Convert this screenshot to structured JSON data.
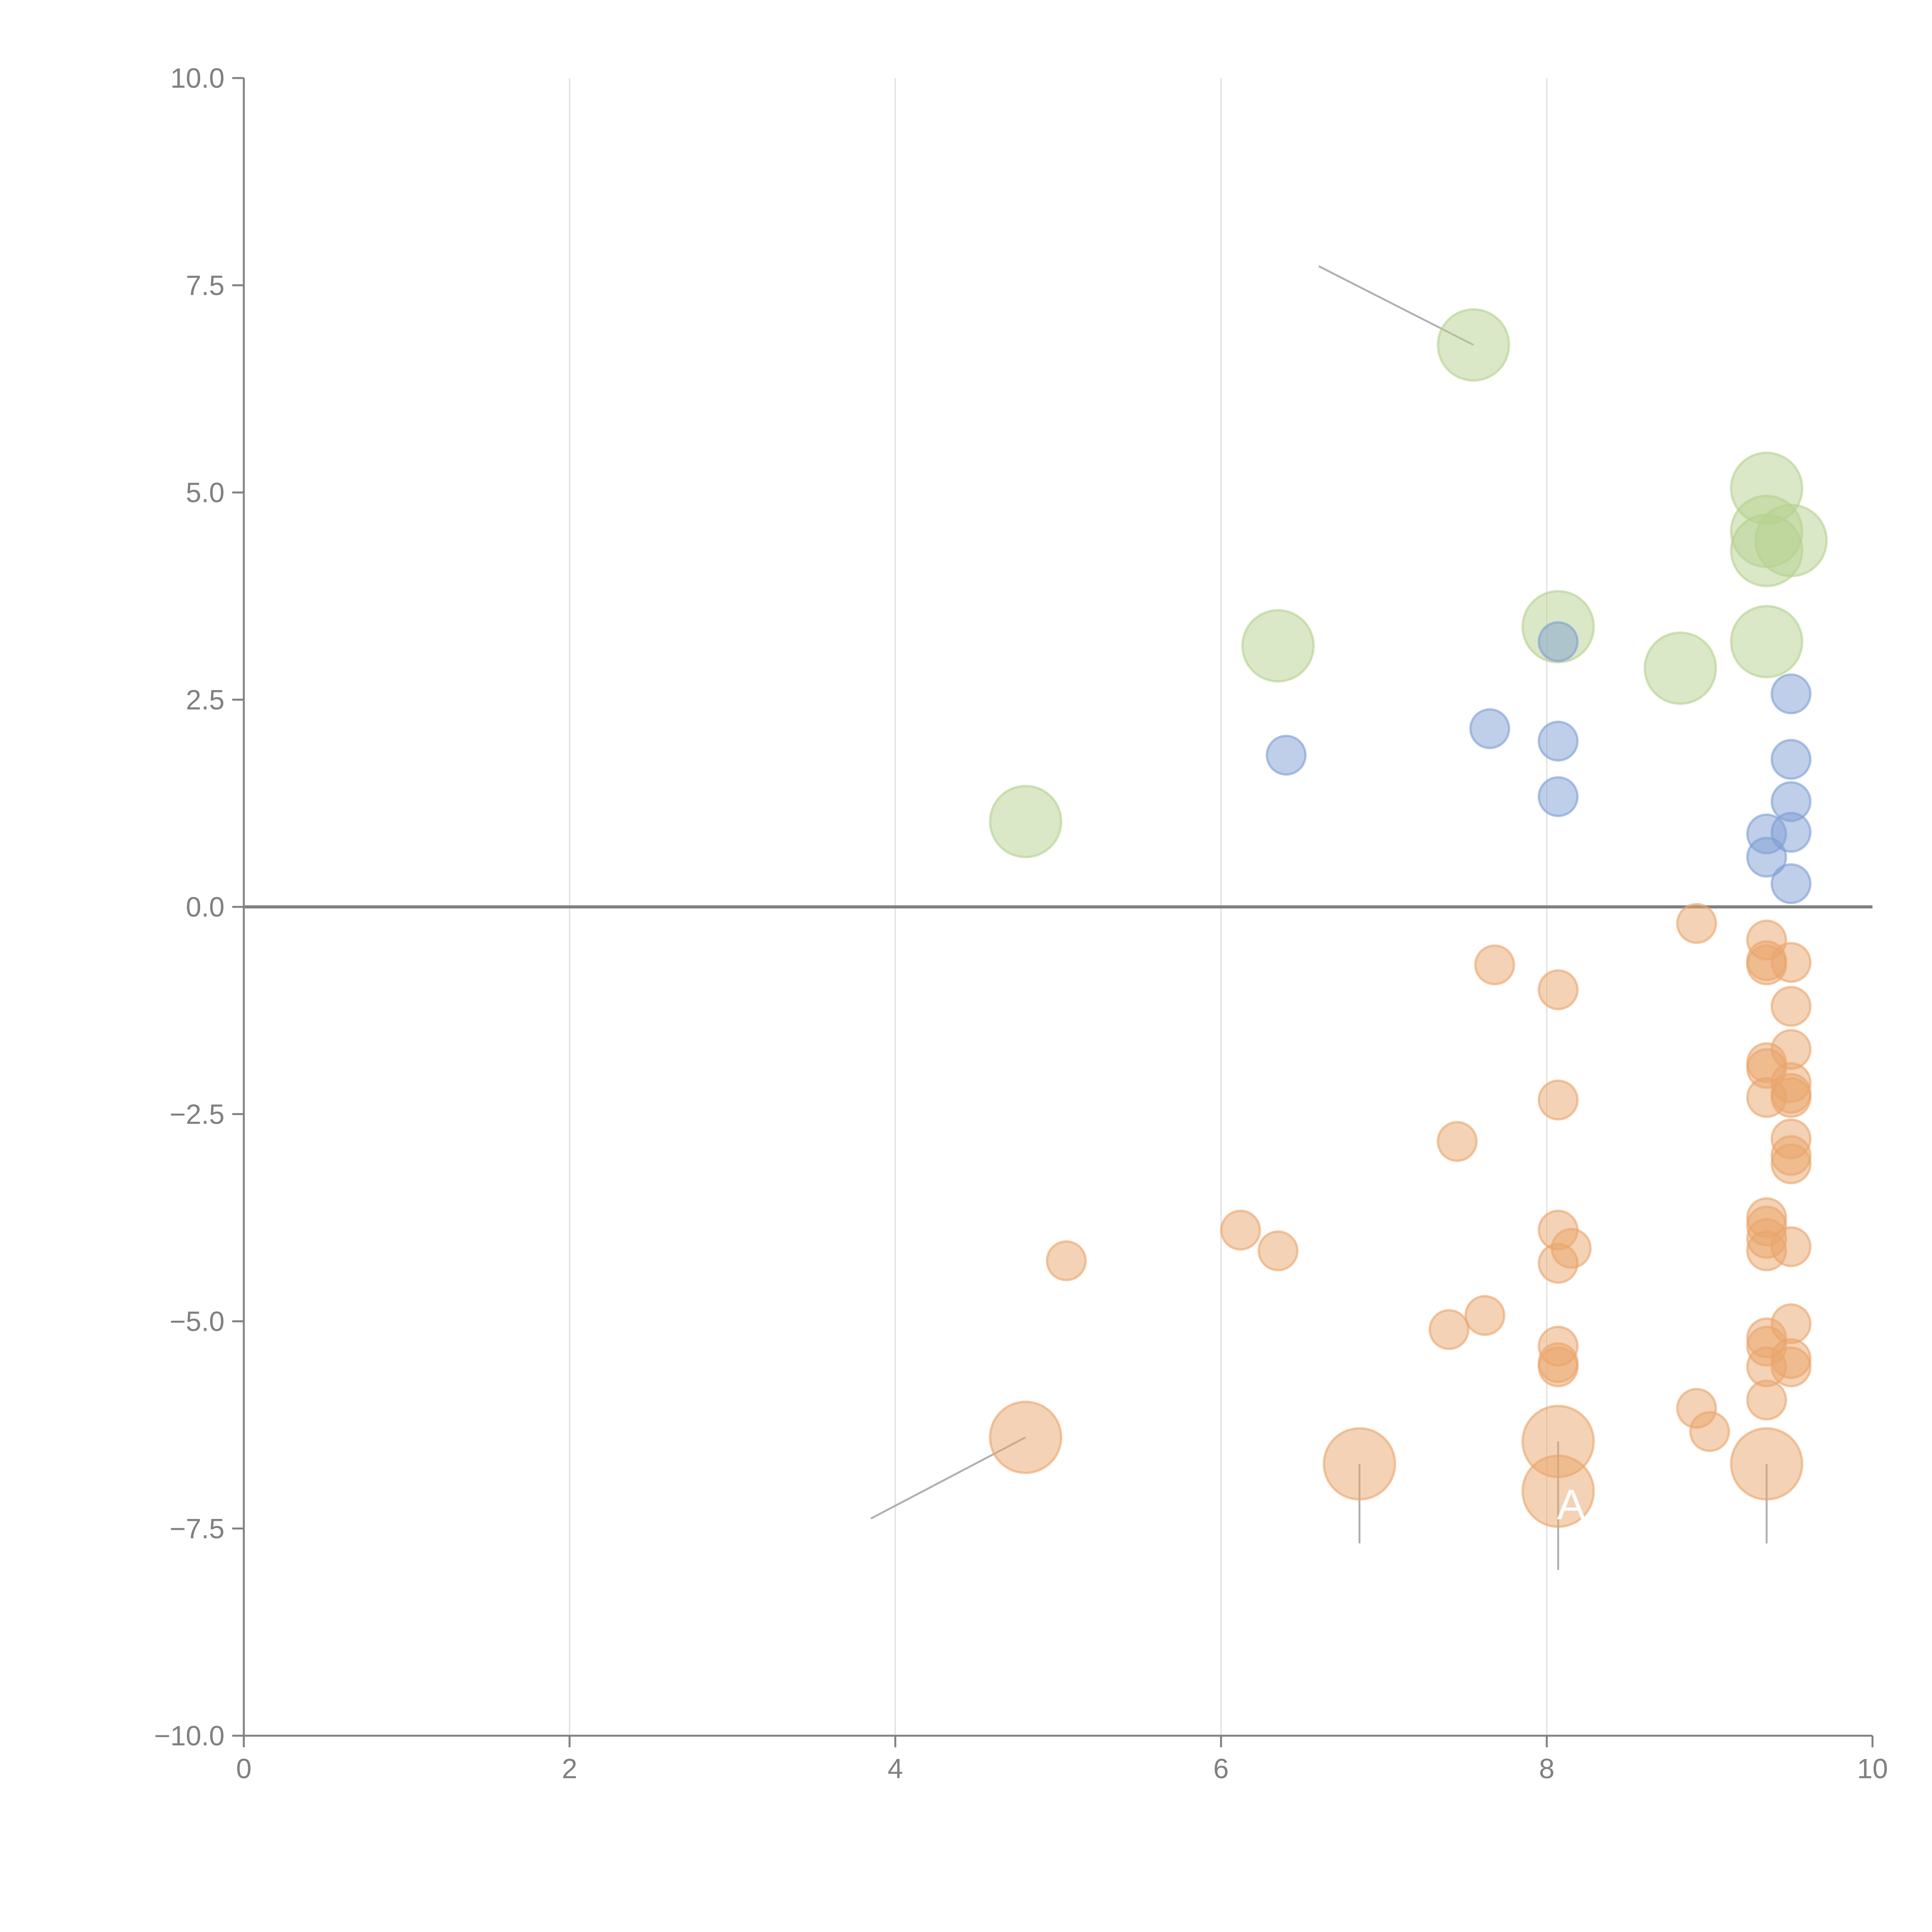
{
  "chart_data": {
    "type": "scatter",
    "title": "",
    "xlabel": "",
    "ylabel": "",
    "xlim": [
      0,
      10
    ],
    "ylim": [
      -10,
      10
    ],
    "x_ticks": [
      "0",
      "2",
      "4",
      "6",
      "8",
      "10"
    ],
    "y_ticks": [
      "10.0",
      "7.5",
      "5.0",
      "2.5",
      "0.0",
      "−2.5",
      "−5.0",
      "−7.5",
      "−10.0"
    ],
    "grid": "vertical",
    "legend": "none",
    "annotations": [
      {
        "text": "A",
        "x": 8.15,
        "y": -7.2
      }
    ],
    "series": [
      {
        "name": "green",
        "color": "#b5d190",
        "size": "large",
        "points": [
          [
            7.55,
            6.78
          ],
          [
            9.35,
            5.05
          ],
          [
            9.35,
            4.53
          ],
          [
            9.35,
            4.3
          ],
          [
            9.5,
            4.42
          ],
          [
            8.07,
            3.38
          ],
          [
            6.35,
            3.15
          ],
          [
            9.35,
            3.2
          ],
          [
            8.82,
            2.88
          ],
          [
            4.8,
            1.03
          ]
        ]
      },
      {
        "name": "blue",
        "color": "#7f9fd3",
        "size": "small",
        "points": [
          [
            8.07,
            3.2
          ],
          [
            9.5,
            2.57
          ],
          [
            7.65,
            2.15
          ],
          [
            6.4,
            1.83
          ],
          [
            8.07,
            2.0
          ],
          [
            9.5,
            1.78
          ],
          [
            8.07,
            1.33
          ],
          [
            9.5,
            1.27
          ],
          [
            9.35,
            0.88
          ],
          [
            9.5,
            0.9
          ],
          [
            9.35,
            0.6
          ],
          [
            9.5,
            0.28
          ]
        ]
      },
      {
        "name": "orange",
        "color": "#e9a56c",
        "size": "small",
        "points": [
          [
            8.92,
            -0.2
          ],
          [
            9.35,
            -0.4
          ],
          [
            9.35,
            -0.65
          ],
          [
            9.35,
            -0.7
          ],
          [
            9.5,
            -0.67
          ],
          [
            7.68,
            -0.7
          ],
          [
            8.07,
            -1.0
          ],
          [
            9.5,
            -1.2
          ],
          [
            9.5,
            -1.72
          ],
          [
            9.35,
            -1.88
          ],
          [
            9.35,
            -1.95
          ],
          [
            9.5,
            -2.12
          ],
          [
            9.35,
            -2.3
          ],
          [
            9.5,
            -2.25
          ],
          [
            9.5,
            -2.3
          ],
          [
            8.07,
            -2.33
          ],
          [
            7.45,
            -2.83
          ],
          [
            9.5,
            -2.8
          ],
          [
            9.5,
            -3.0
          ],
          [
            9.5,
            -3.1
          ],
          [
            6.12,
            -3.9
          ],
          [
            9.35,
            -3.75
          ],
          [
            9.35,
            -3.85
          ],
          [
            9.35,
            -4.0
          ],
          [
            8.07,
            -3.9
          ],
          [
            8.15,
            -4.12
          ],
          [
            6.35,
            -4.15
          ],
          [
            9.35,
            -4.15
          ],
          [
            9.5,
            -4.1
          ],
          [
            8.07,
            -4.3
          ],
          [
            5.05,
            -4.27
          ],
          [
            7.62,
            -4.93
          ],
          [
            7.4,
            -5.1
          ],
          [
            9.5,
            -5.03
          ],
          [
            9.35,
            -5.2
          ],
          [
            9.35,
            -5.3
          ],
          [
            8.07,
            -5.3
          ],
          [
            8.07,
            -5.5
          ],
          [
            8.07,
            -5.55
          ],
          [
            9.5,
            -5.45
          ],
          [
            9.35,
            -5.55
          ],
          [
            9.5,
            -5.55
          ],
          [
            9.35,
            -5.95
          ],
          [
            8.92,
            -6.05
          ],
          [
            9.0,
            -6.33
          ]
        ]
      },
      {
        "name": "orange-large",
        "color": "#e9a56c",
        "size": "large",
        "points": [
          [
            4.8,
            -6.4
          ],
          [
            6.85,
            -6.72
          ],
          [
            8.07,
            -6.45
          ],
          [
            8.07,
            -7.05
          ],
          [
            9.35,
            -6.72
          ]
        ]
      }
    ],
    "leader_lines": [
      [
        [
          7.55,
          6.78
        ],
        [
          6.6,
          7.73
        ]
      ],
      [
        [
          4.8,
          -6.4
        ],
        [
          3.85,
          -7.38
        ]
      ],
      [
        [
          6.85,
          -6.72
        ],
        [
          6.85,
          -7.68
        ]
      ],
      [
        [
          8.07,
          -6.45
        ],
        [
          8.07,
          -8.0
        ]
      ],
      [
        [
          9.35,
          -6.72
        ],
        [
          9.35,
          -7.68
        ]
      ]
    ]
  }
}
